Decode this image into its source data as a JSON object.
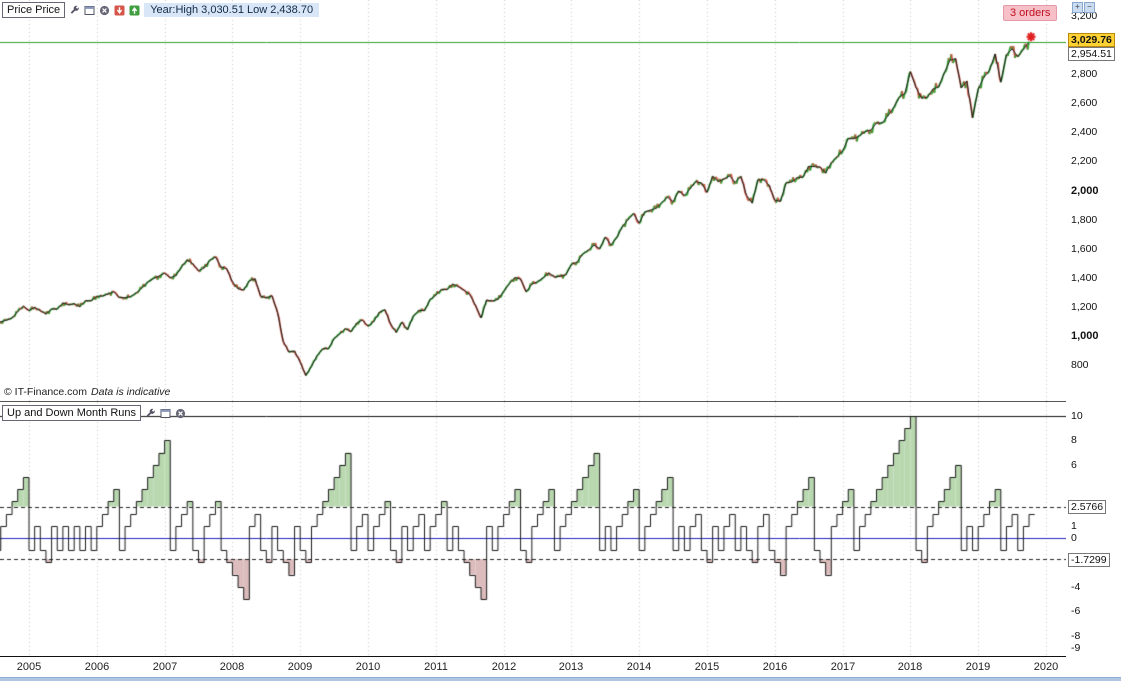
{
  "price_panel": {
    "legend_label": "Price Price",
    "info_text": "Year:High 3,030.51 Low 2,438.70",
    "orders_badge": "3 orders",
    "copyright": "© IT-Finance.com",
    "disclaimer": "Data is indicative",
    "last_price_label": "3,029.76",
    "secondary_price_label": "2,954.51",
    "axis_ticks": [
      "3,200",
      "2,800",
      "2,600",
      "2,400",
      "2,200",
      "2,000",
      "1,800",
      "1,600",
      "1,400",
      "1,200",
      "1,000",
      "800"
    ],
    "toolbar_icons": [
      "wrench-icon",
      "window-icon",
      "close-icon",
      "sell-arrow-icon",
      "buy-arrow-icon"
    ]
  },
  "indicator_panel": {
    "legend_label": "Up and Down Month Runs",
    "axis_ticks": [
      "10",
      "8",
      "6",
      "1",
      "0",
      "-4",
      "-6",
      "-8",
      "-9"
    ],
    "upper_band_label": "2.5766",
    "lower_band_label": "-1.7299",
    "toolbar_icons": [
      "wrench-icon",
      "window-icon",
      "close-icon"
    ]
  },
  "x_axis": {
    "years": [
      "2005",
      "2006",
      "2007",
      "2008",
      "2009",
      "2010",
      "2011",
      "2012",
      "2013",
      "2014",
      "2015",
      "2016",
      "2017",
      "2018",
      "2019",
      "2020"
    ]
  },
  "axis_tools": {
    "plus": "+",
    "minus": "−"
  },
  "colors": {
    "up": "#2fa12f",
    "down": "#cc5544",
    "price_line": "#1a1a1a",
    "year_high_line": "#2ca02c",
    "marker": "#e02020",
    "zero_line": "#2323bb",
    "band_fill_up": "#b9d8b0",
    "band_fill_down": "#dcbcbc",
    "grid": "#c9c9c9",
    "last_price_bg": "#ffd234",
    "orders_bg": "#f7bfc7",
    "orders_text": "#c01020",
    "info_bg": "#d8e6f8"
  },
  "chart_data": [
    {
      "type": "line",
      "name": "Price",
      "interval": "monthly",
      "x_range": [
        "2004-07",
        "2019-10"
      ],
      "ylim": [
        560,
        3317
      ],
      "year_high_line": 3030.51,
      "year_low": 2438.7,
      "last_price": 3029.76,
      "values": [
        1101.72,
        1104.24,
        1114.58,
        1130.2,
        1173.82,
        1211.92,
        1181.27,
        1203.6,
        1180.59,
        1156.85,
        1191.5,
        1191.33,
        1234.18,
        1220.33,
        1228.81,
        1207.01,
        1249.48,
        1248.29,
        1280.08,
        1280.66,
        1294.87,
        1310.61,
        1270.09,
        1270.2,
        1276.66,
        1303.82,
        1335.85,
        1377.94,
        1400.63,
        1418.3,
        1438.24,
        1406.82,
        1420.86,
        1482.37,
        1530.62,
        1503.35,
        1455.27,
        1473.99,
        1526.75,
        1549.38,
        1481.14,
        1468.36,
        1378.55,
        1330.63,
        1322.7,
        1385.59,
        1400.38,
        1280.0,
        1267.38,
        1282.83,
        1166.36,
        968.75,
        896.24,
        903.25,
        825.88,
        735.09,
        797.87,
        872.81,
        919.14,
        919.32,
        987.48,
        1020.62,
        1057.08,
        1036.19,
        1095.63,
        1115.1,
        1073.87,
        1104.49,
        1169.43,
        1186.69,
        1089.41,
        1030.71,
        1101.6,
        1049.33,
        1141.2,
        1183.26,
        1180.55,
        1257.64,
        1286.12,
        1327.22,
        1325.83,
        1363.61,
        1345.2,
        1320.64,
        1292.28,
        1218.89,
        1131.42,
        1253.3,
        1246.96,
        1257.6,
        1312.41,
        1365.68,
        1408.47,
        1397.91,
        1310.33,
        1362.16,
        1379.32,
        1406.58,
        1440.67,
        1412.16,
        1416.18,
        1426.19,
        1498.11,
        1514.68,
        1569.19,
        1597.57,
        1630.74,
        1606.28,
        1685.73,
        1632.97,
        1681.55,
        1756.54,
        1805.81,
        1848.36,
        1782.59,
        1859.45,
        1872.34,
        1883.95,
        1923.57,
        1960.23,
        1930.67,
        2003.37,
        1972.29,
        2018.05,
        2067.56,
        2058.9,
        1994.99,
        2104.5,
        2067.89,
        2085.51,
        2107.39,
        2063.11,
        2103.84,
        1972.18,
        1920.03,
        2079.36,
        2080.41,
        2043.94,
        1940.24,
        1932.23,
        2059.74,
        2065.3,
        2096.95,
        2098.86,
        2173.6,
        2170.95,
        2168.27,
        2126.15,
        2198.81,
        2238.83,
        2278.87,
        2363.64,
        2362.72,
        2384.2,
        2411.8,
        2423.41,
        2470.3,
        2471.65,
        2519.36,
        2575.26,
        2647.58,
        2673.61,
        2823.81,
        2713.83,
        2640.87,
        2648.05,
        2705.27,
        2718.37,
        2816.29,
        2901.52,
        2913.98,
        2711.74,
        2760.17,
        2506.85,
        2704.1,
        2784.49,
        2834.4,
        2945.83,
        2752.06,
        2941.76,
        2980.38,
        2926.46,
        2976.74,
        3029.76
      ]
    },
    {
      "type": "step-area",
      "name": "Up and Down Month Runs",
      "interval": "monthly",
      "x_range": [
        "2004-07",
        "2019-10"
      ],
      "ylim": [
        -9.8,
        11.1
      ],
      "upper_band": 2.5766,
      "lower_band": -1.7299,
      "max_line": 10,
      "values": [
        -1,
        1,
        2,
        3,
        4,
        5,
        -1,
        1,
        -1,
        -2,
        1,
        -1,
        1,
        -1,
        1,
        -1,
        1,
        -1,
        1,
        2,
        3,
        4,
        -1,
        1,
        2,
        3,
        4,
        5,
        6,
        7,
        8,
        -1,
        1,
        2,
        3,
        -1,
        -2,
        1,
        2,
        3,
        -1,
        -2,
        -3,
        -4,
        -5,
        1,
        2,
        -1,
        -2,
        1,
        -1,
        -2,
        -3,
        1,
        -1,
        -2,
        1,
        2,
        3,
        4,
        5,
        6,
        7,
        -1,
        1,
        2,
        -1,
        1,
        2,
        3,
        -1,
        -2,
        1,
        -1,
        1,
        2,
        -1,
        1,
        2,
        3,
        -1,
        1,
        -1,
        -2,
        -3,
        -4,
        -5,
        1,
        -1,
        1,
        2,
        3,
        4,
        -1,
        -2,
        1,
        2,
        3,
        4,
        -1,
        1,
        2,
        3,
        4,
        5,
        6,
        7,
        -1,
        1,
        -1,
        1,
        2,
        3,
        4,
        -1,
        1,
        2,
        3,
        4,
        5,
        -1,
        1,
        -1,
        1,
        2,
        -1,
        -2,
        1,
        -1,
        1,
        2,
        -1,
        1,
        -1,
        -2,
        1,
        2,
        -1,
        -2,
        -3,
        1,
        2,
        3,
        4,
        5,
        -1,
        -2,
        -3,
        1,
        2,
        3,
        4,
        -1,
        1,
        2,
        3,
        4,
        5,
        6,
        7,
        8,
        9,
        10,
        -1,
        -2,
        1,
        2,
        3,
        4,
        5,
        6,
        -1,
        1,
        -1,
        1,
        2,
        3,
        4,
        -1,
        1,
        2,
        -1,
        1,
        2
      ]
    }
  ]
}
